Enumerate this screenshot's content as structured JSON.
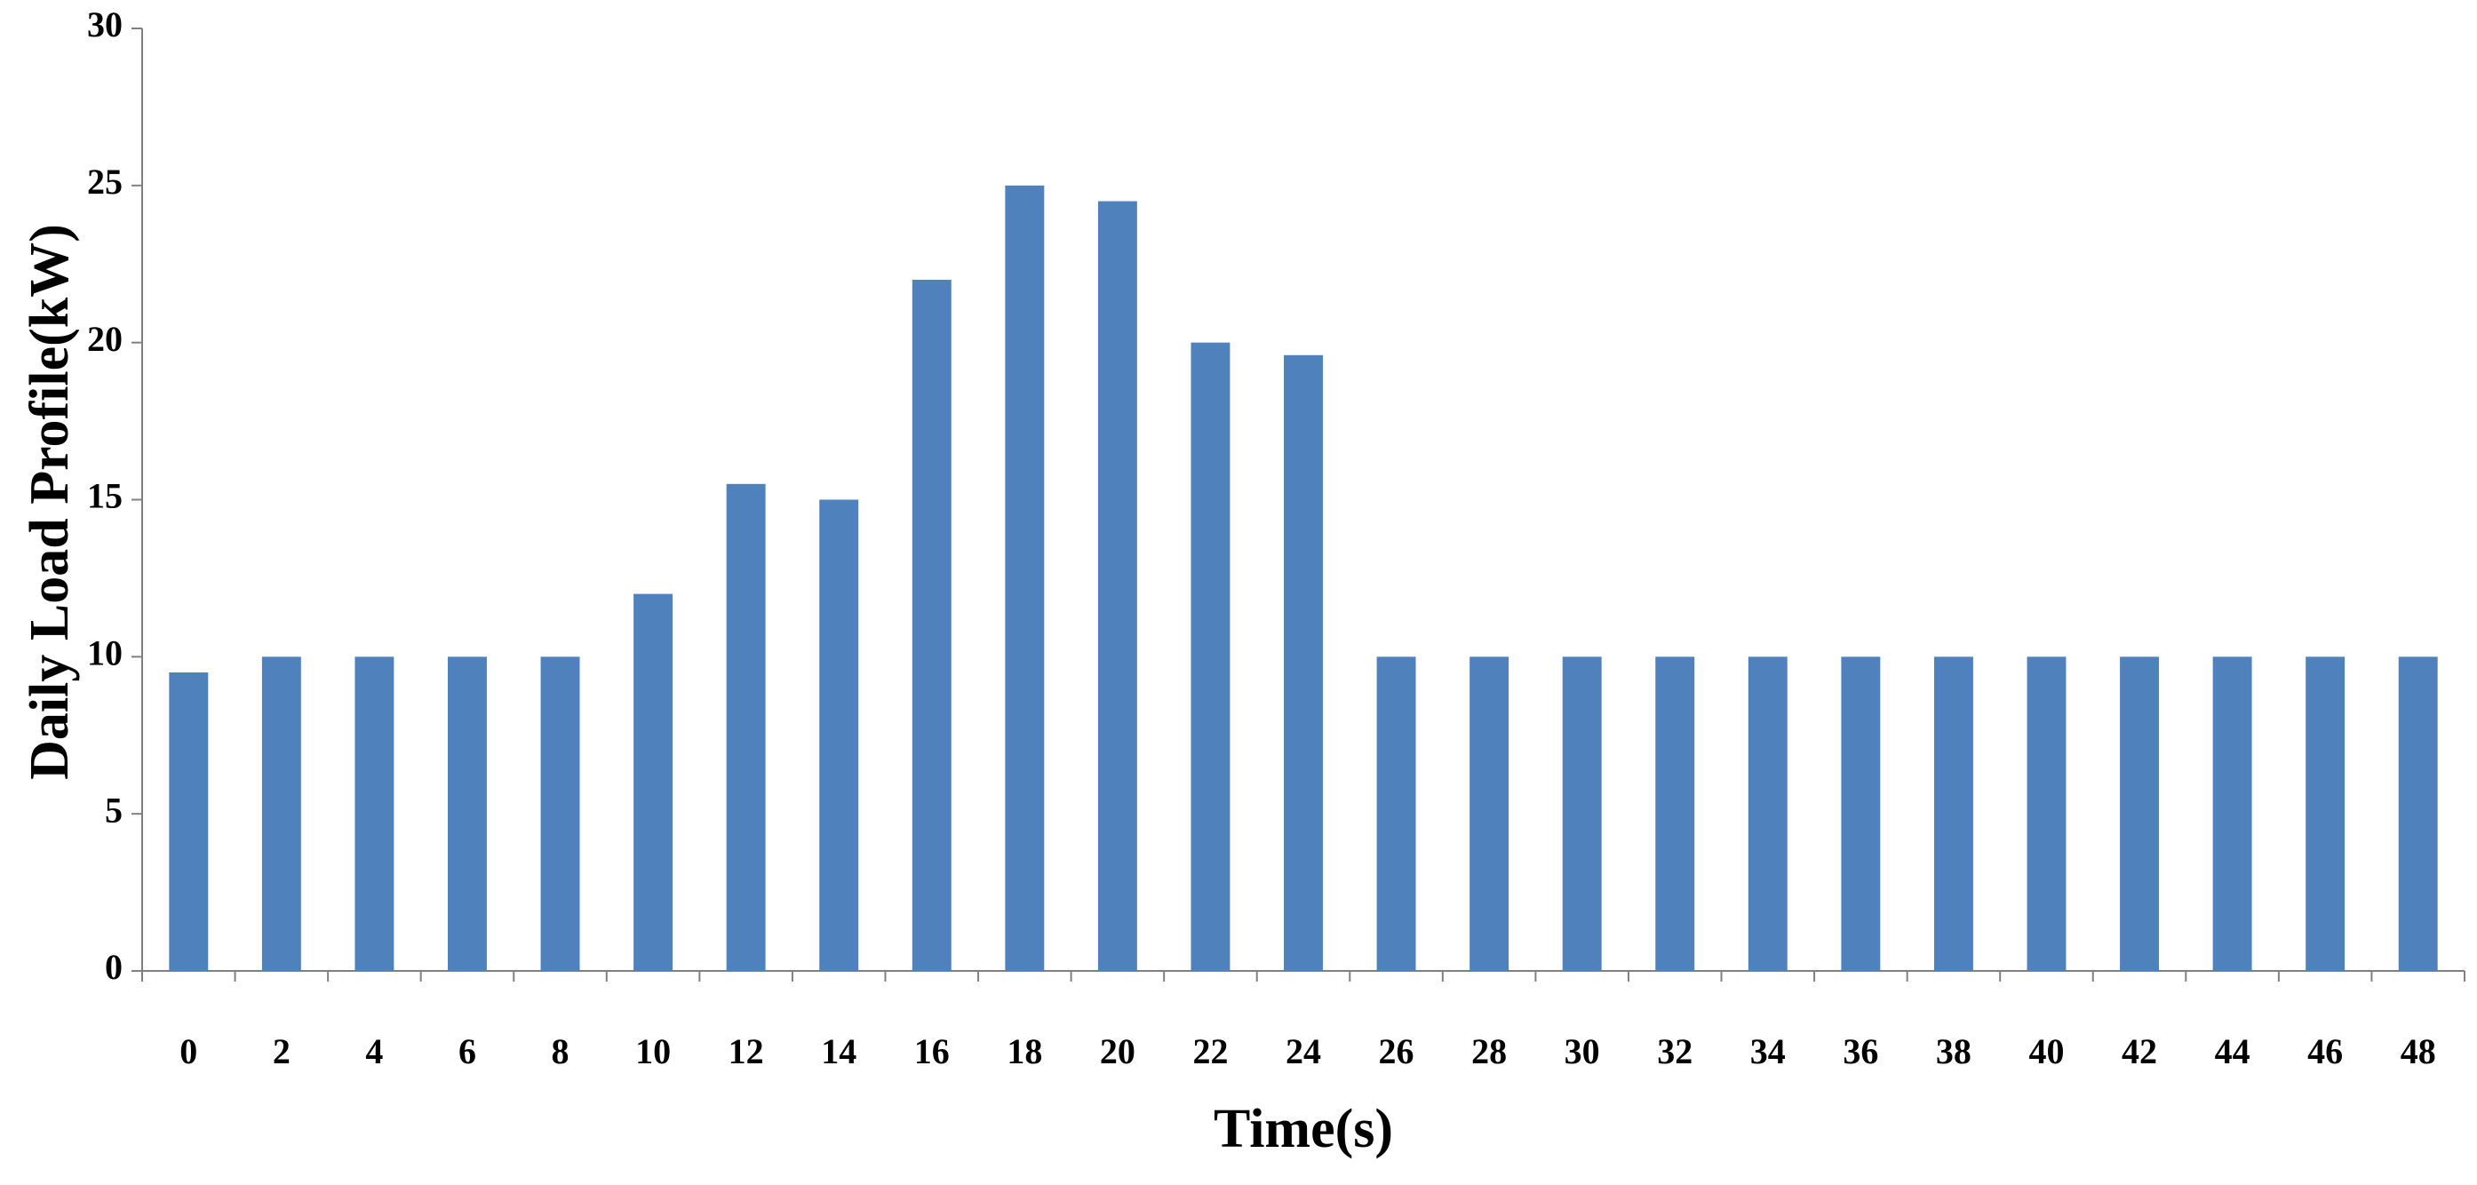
{
  "chart_data": {
    "type": "bar",
    "x_label": "Time(s)",
    "y_label": "Daily Load Profile(kW)",
    "categories": [
      "0",
      "2",
      "4",
      "6",
      "8",
      "10",
      "12",
      "14",
      "16",
      "18",
      "20",
      "22",
      "24",
      "26",
      "28",
      "30",
      "32",
      "34",
      "36",
      "38",
      "40",
      "42",
      "44",
      "46",
      "48"
    ],
    "values": [
      9.5,
      10,
      10,
      10,
      10,
      12,
      15.5,
      15,
      22,
      25,
      24.5,
      20,
      19.6,
      10,
      10,
      10,
      10,
      10,
      10,
      10,
      10,
      10,
      10,
      10,
      10
    ],
    "color": "#4f81bd",
    "ylim": [
      0,
      30
    ],
    "yticks": [
      0,
      5,
      10,
      15,
      20,
      25,
      30
    ],
    "grid": false
  }
}
